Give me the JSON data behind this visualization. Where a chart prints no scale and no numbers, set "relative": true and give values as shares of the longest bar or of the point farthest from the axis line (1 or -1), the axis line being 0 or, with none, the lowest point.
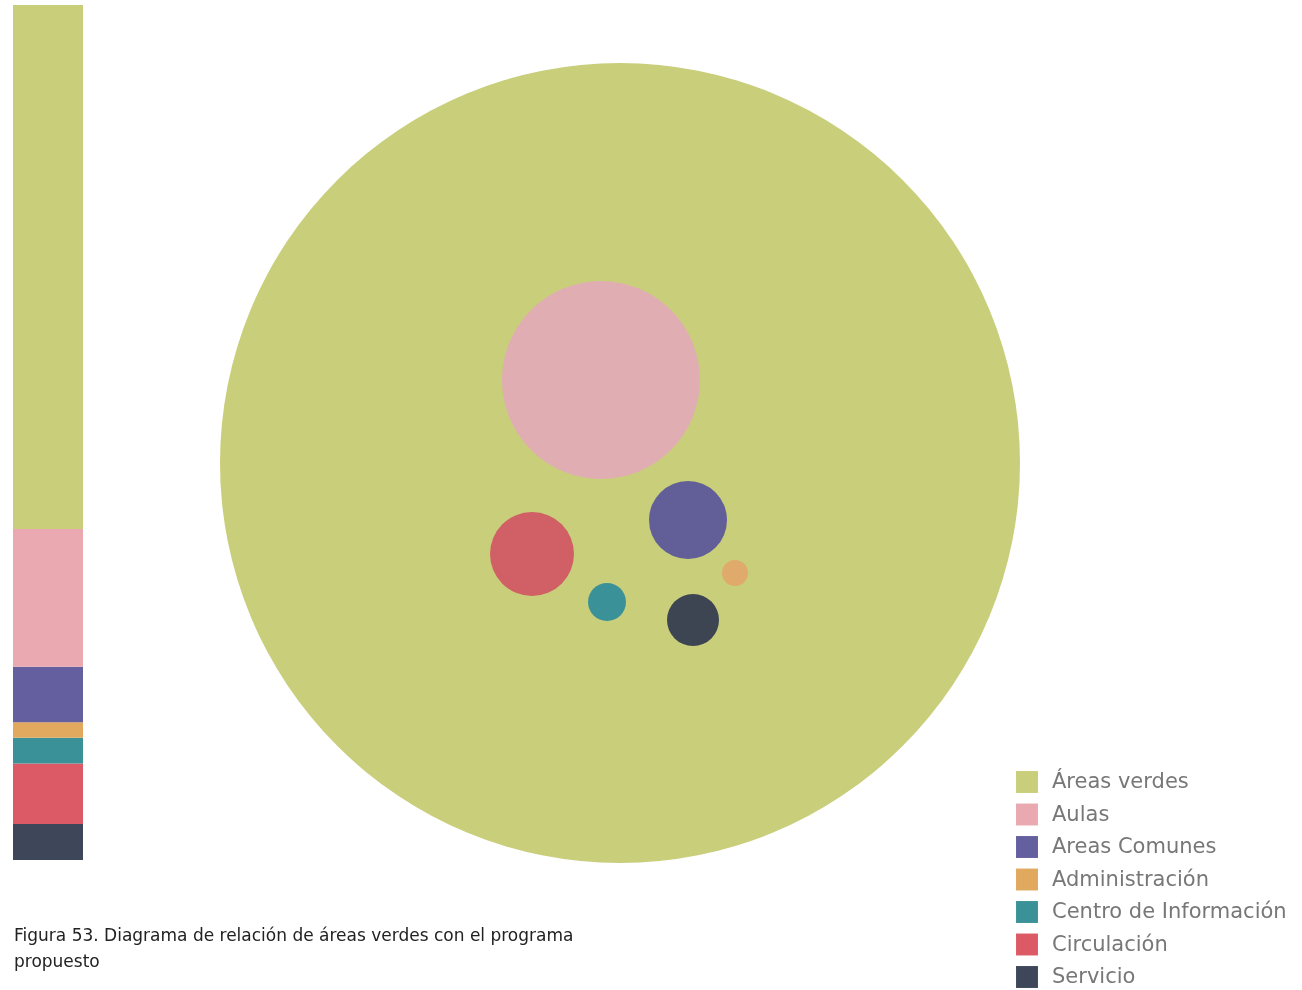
{
  "chart_data": {
    "type": "bar",
    "stacked": true,
    "relative": true,
    "categories": [
      null
    ],
    "legend": "bottom right",
    "annotations": [
      "Figura 53. Diagrama de relación de áreas verdes con el programa propuesto"
    ],
    "series": [
      {
        "name": "Servicio",
        "color": "#3d4759",
        "values": [
          0.042
        ]
      },
      {
        "name": "Circulación",
        "color": "#dc5966",
        "values": [
          0.071
        ]
      },
      {
        "name": "Centro de Información",
        "color": "#3b9198",
        "values": [
          0.03
        ]
      },
      {
        "name": "Administración",
        "color": "#e0a95e",
        "values": [
          0.018
        ]
      },
      {
        "name": "Areas Comunes",
        "color": "#645f9e",
        "values": [
          0.065
        ]
      },
      {
        "name": "Aulas",
        "color": "#eaa9b0",
        "values": [
          0.161
        ]
      },
      {
        "name": "Áreas verdes",
        "color": "#c9ce7b",
        "values": [
          0.613
        ]
      }
    ]
  }
}
